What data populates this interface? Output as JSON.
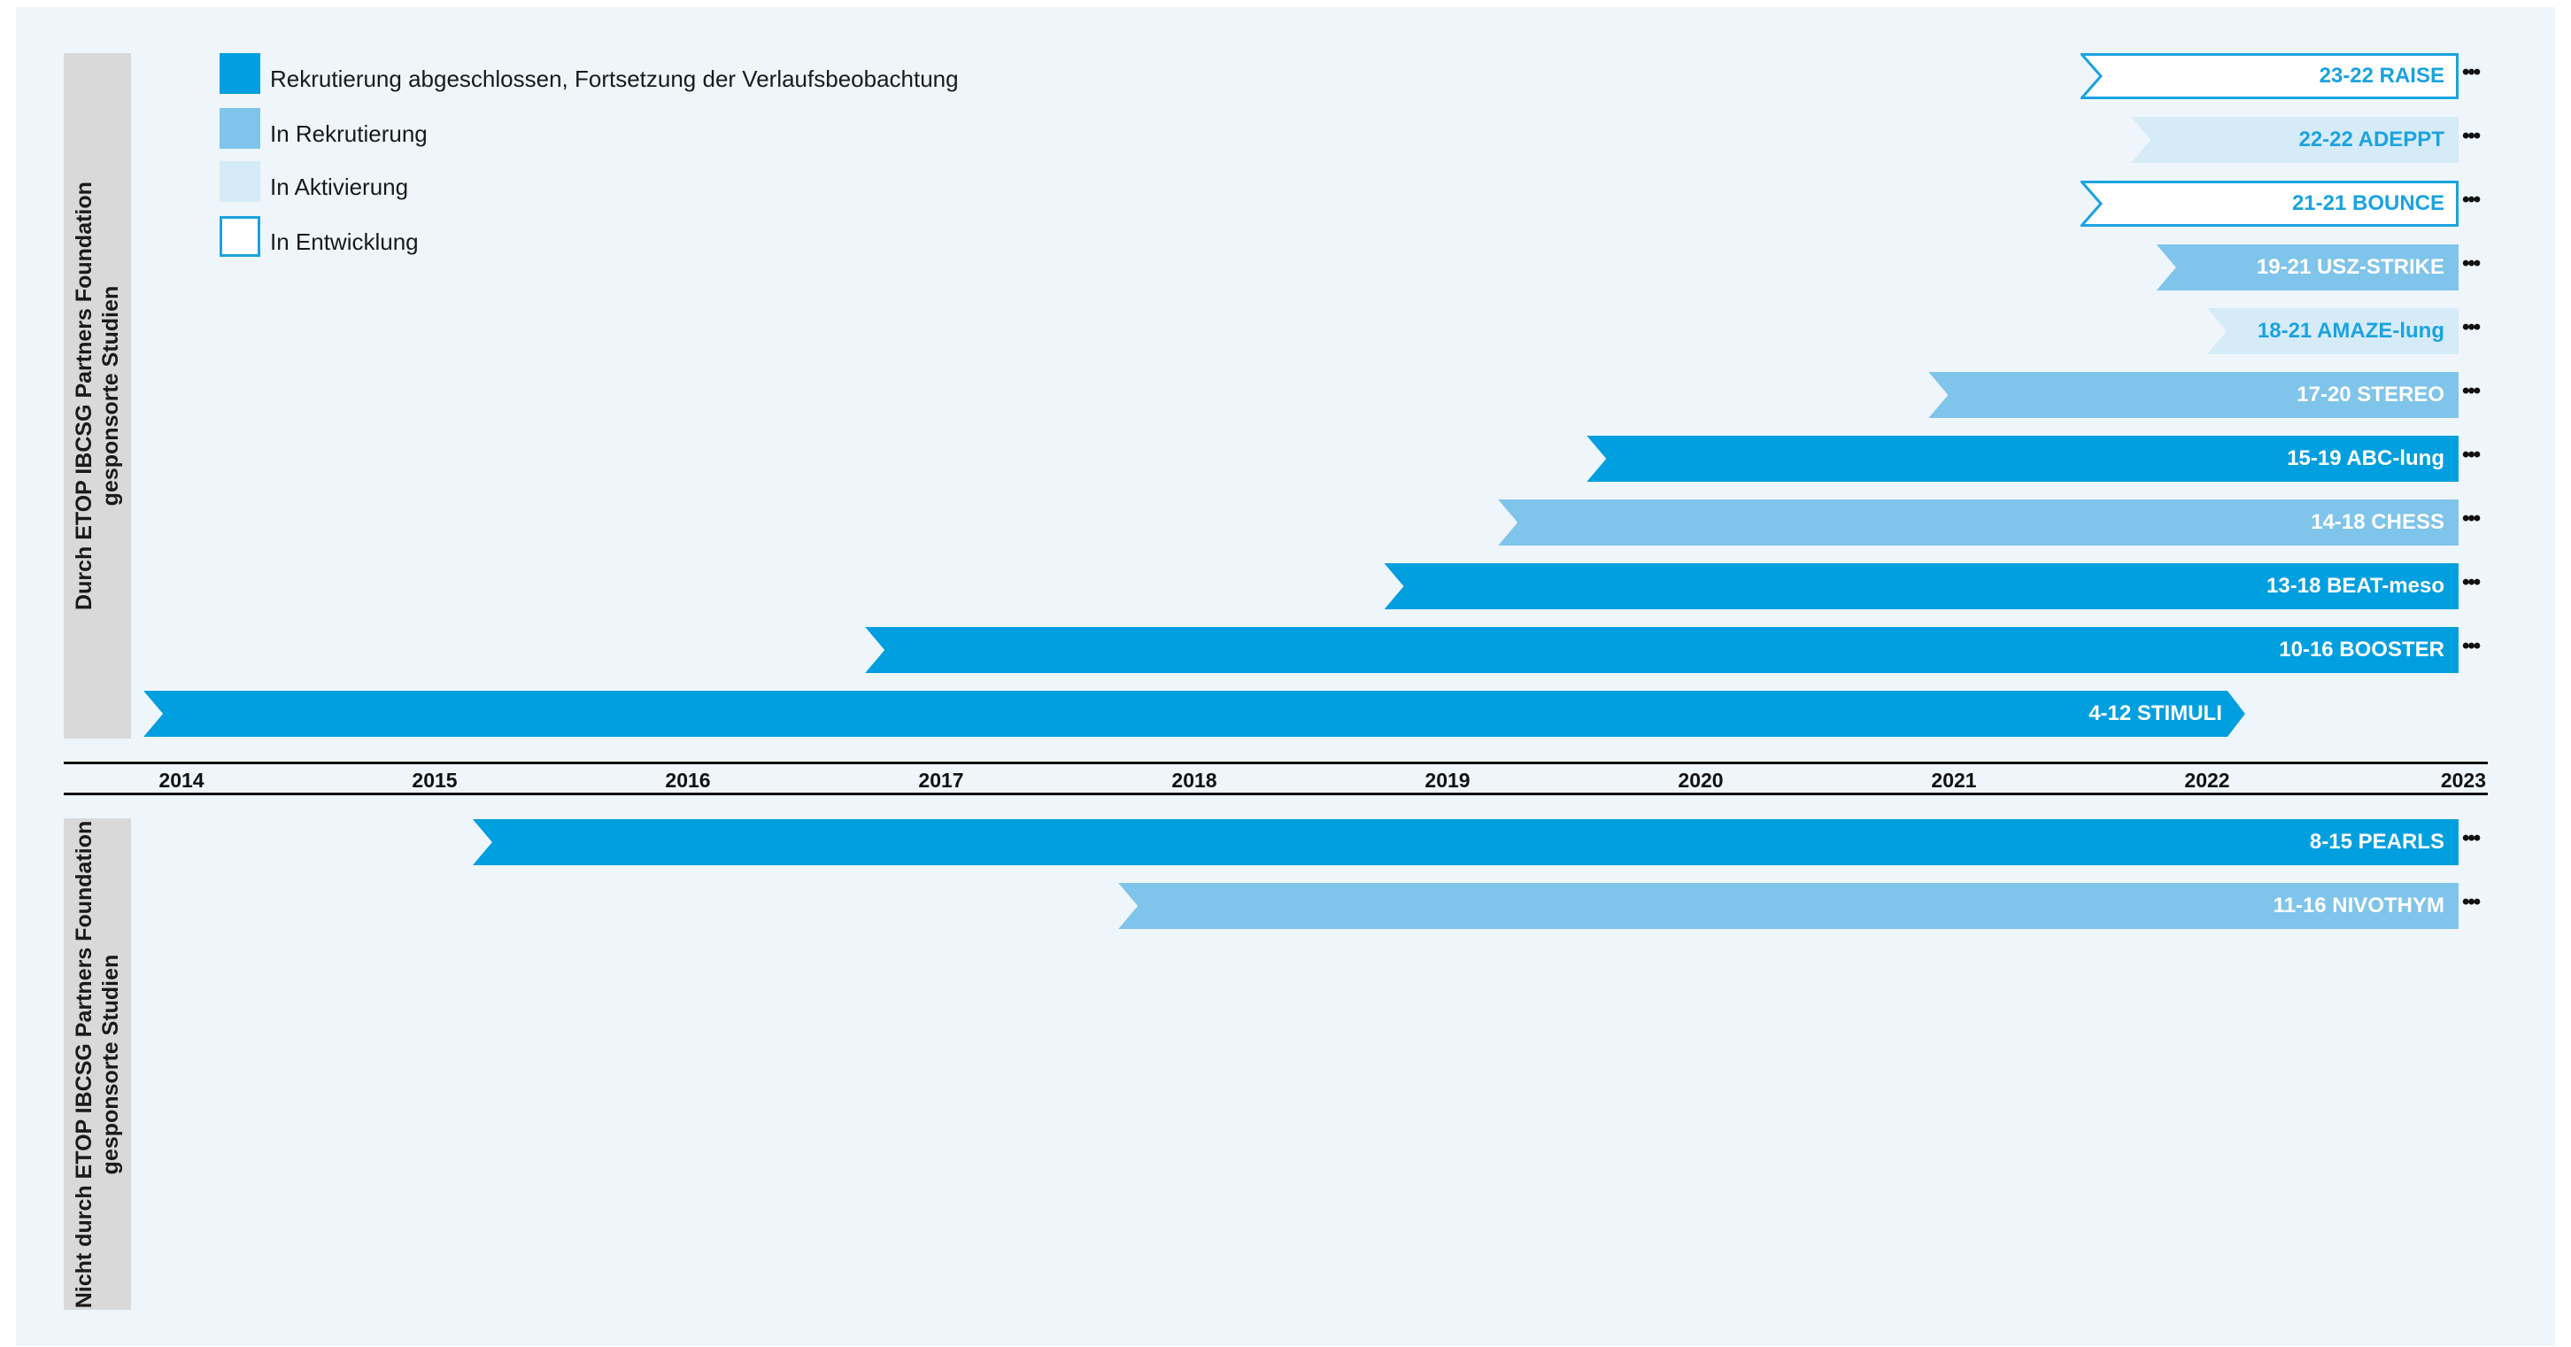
{
  "colors": {
    "completed": "#009fdf",
    "recruiting": "#7fc4ea",
    "activating": "#d6ebf8",
    "developing_border": "#1aa3e0",
    "label_dark": "#ffffff",
    "label_light": "#1aa3e0"
  },
  "sections": {
    "sponsored": {
      "line1": "Durch ETOP IBCSG Partners Foundation",
      "line2": "gesponsorte Studien"
    },
    "not_sponsored": {
      "line1": "Nicht durch ETOP IBCSG Partners Foundation",
      "line2": "gesponsorte Studien"
    }
  },
  "legend": [
    {
      "status": "completed",
      "label": "Rekrutierung abgeschlossen, Fortsetzung der Verlaufsbeobachtung"
    },
    {
      "status": "recruiting",
      "label": "In Rekrutierung"
    },
    {
      "status": "activating",
      "label": "In Aktivierung"
    },
    {
      "status": "developing",
      "label": "In Entwicklung"
    }
  ],
  "more_indicator": "•••",
  "chart_data": {
    "type": "gantt",
    "x_axis": {
      "ticks": [
        "2014",
        "2015",
        "2016",
        "2017",
        "2018",
        "2019",
        "2020",
        "2021",
        "2022",
        "2023"
      ],
      "range": [
        2013.85,
        2023
      ]
    },
    "series": [
      {
        "name": "23-22 RAISE",
        "start": 2021.5,
        "end": 2023,
        "status": "developing",
        "section": "sponsored",
        "continues": true
      },
      {
        "name": "22-22 ADEPPT",
        "start": 2021.7,
        "end": 2023,
        "status": "activating",
        "section": "sponsored",
        "continues": true
      },
      {
        "name": "21-21 BOUNCE",
        "start": 2021.5,
        "end": 2023,
        "status": "developing",
        "section": "sponsored",
        "continues": true
      },
      {
        "name": "19-21 USZ-STRIKE",
        "start": 2021.8,
        "end": 2023,
        "status": "recruiting",
        "section": "sponsored",
        "continues": true
      },
      {
        "name": "18-21 AMAZE-lung",
        "start": 2022.0,
        "end": 2023,
        "status": "activating",
        "section": "sponsored",
        "continues": true
      },
      {
        "name": "17-20 STEREO",
        "start": 2020.9,
        "end": 2023,
        "status": "recruiting",
        "section": "sponsored",
        "continues": true
      },
      {
        "name": "15-19 ABC-lung",
        "start": 2019.55,
        "end": 2023,
        "status": "completed",
        "section": "sponsored",
        "continues": true
      },
      {
        "name": "14-18 CHESS",
        "start": 2019.2,
        "end": 2023,
        "status": "recruiting",
        "section": "sponsored",
        "continues": true
      },
      {
        "name": "13-18 BEAT-meso",
        "start": 2018.75,
        "end": 2023,
        "status": "completed",
        "section": "sponsored",
        "continues": true
      },
      {
        "name": "10-16 BOOSTER",
        "start": 2016.7,
        "end": 2023,
        "status": "completed",
        "section": "sponsored",
        "continues": true
      },
      {
        "name": "4-12 STIMULI",
        "start": 2013.85,
        "end": 2022.15,
        "status": "completed",
        "section": "sponsored",
        "continues": false
      },
      {
        "name": "8-15 PEARLS",
        "start": 2015.15,
        "end": 2023,
        "status": "completed",
        "section": "not_sponsored",
        "continues": true
      },
      {
        "name": "11-16 NIVOTHYM",
        "start": 2017.7,
        "end": 2023,
        "status": "recruiting",
        "section": "not_sponsored",
        "continues": true
      }
    ]
  }
}
